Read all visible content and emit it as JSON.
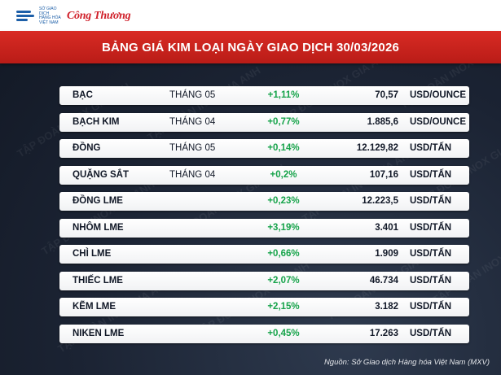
{
  "header": {
    "org_lines": [
      "SỞ GIAO DỊCH",
      "HÀNG HÓA",
      "VIỆT NAM"
    ],
    "brand": "Công Thương"
  },
  "title": "BẢNG GIÁ KIM LOẠI NGÀY GIAO DỊCH 30/03/2026",
  "rows": [
    {
      "name": "BẠC",
      "month": "THÁNG 05",
      "change": "+1,11%",
      "price": "70,57",
      "unit": "USD/OUNCE"
    },
    {
      "name": "BẠCH KIM",
      "month": "THÁNG 04",
      "change": "+0,77%",
      "price": "1.885,6",
      "unit": "USD/OUNCE"
    },
    {
      "name": "ĐỒNG",
      "month": "THÁNG 05",
      "change": "+0,14%",
      "price": "12.129,82",
      "unit": "USD/TẤN"
    },
    {
      "name": "QUẶNG SẮT",
      "month": "THÁNG 04",
      "change": "+0,2%",
      "price": "107,16",
      "unit": "USD/TẤN"
    },
    {
      "name": "ĐỒNG LME",
      "month": "",
      "change": "+0,23%",
      "price": "12.223,5",
      "unit": "USD/TẤN"
    },
    {
      "name": "NHÔM LME",
      "month": "",
      "change": "+3,19%",
      "price": "3.401",
      "unit": "USD/TẤN"
    },
    {
      "name": "CHÌ LME",
      "month": "",
      "change": "+0,66%",
      "price": "1.909",
      "unit": "USD/TẤN"
    },
    {
      "name": "THIẾC LME",
      "month": "",
      "change": "+2,07%",
      "price": "46.734",
      "unit": "USD/TẤN"
    },
    {
      "name": "KẼM LME",
      "month": "",
      "change": "+2,15%",
      "price": "3.182",
      "unit": "USD/TẤN"
    },
    {
      "name": "NIKEN LME",
      "month": "",
      "change": "+0,45%",
      "price": "17.263",
      "unit": "USD/TẤN"
    }
  ],
  "source": "Nguồn: Sở Giao dịch Hàng hóa Việt Nam (MXV)",
  "watermark": "TẬP ĐOÀN INOX GIA ANH",
  "colors": {
    "title_bg": "#c8221c",
    "positive": "#16a34a",
    "brand": "#d0202a",
    "org": "#1d5fa8"
  }
}
